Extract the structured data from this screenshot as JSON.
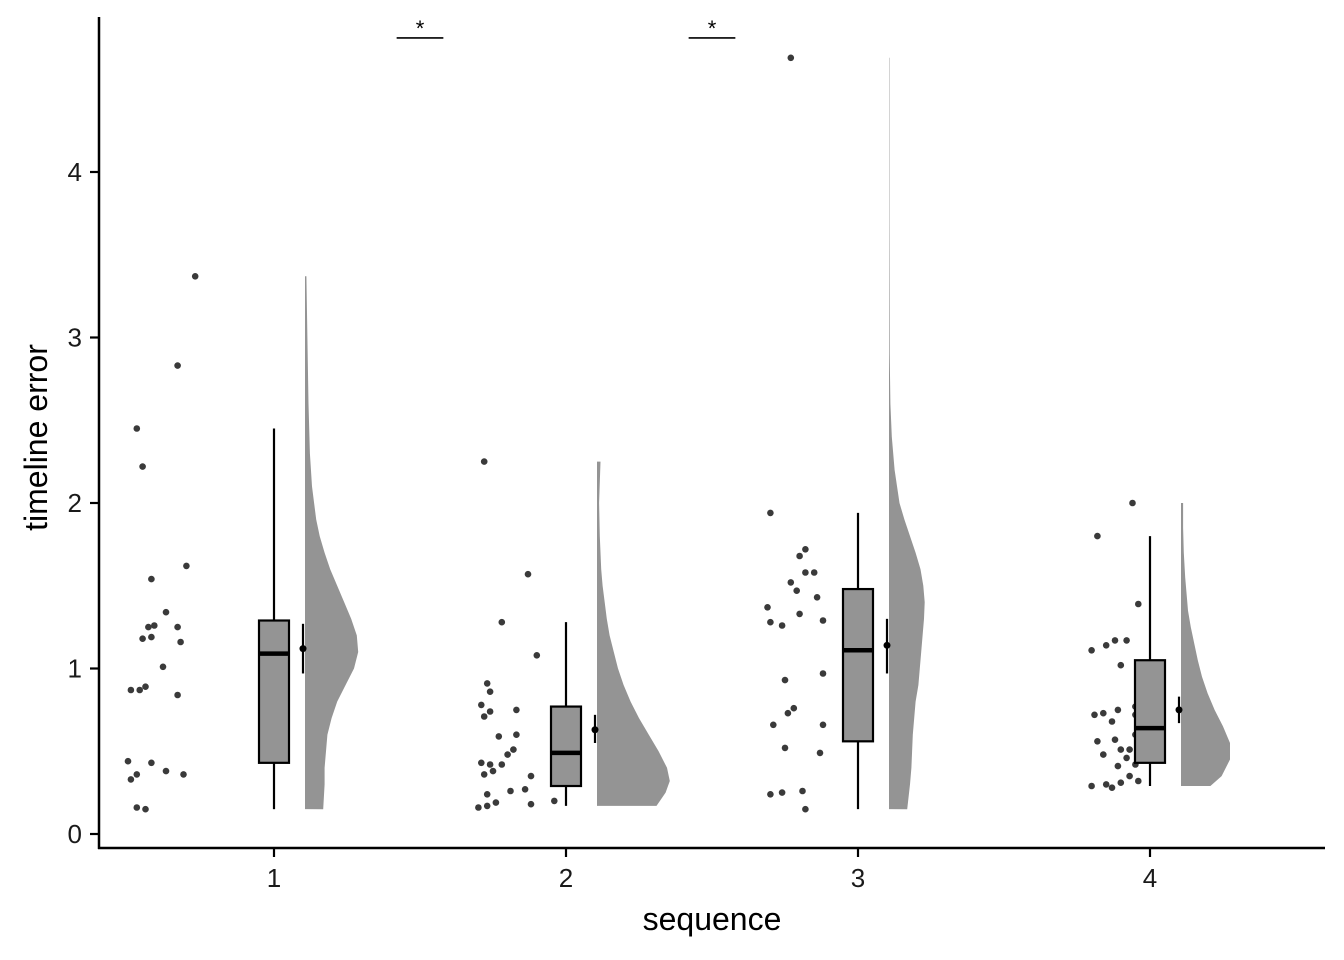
{
  "chart_data": {
    "type": "raincloud",
    "title": "",
    "xlabel": "sequence",
    "ylabel": "timeline error",
    "categories": [
      "1",
      "2",
      "3",
      "4"
    ],
    "ylim": [
      -0.08,
      4.95
    ],
    "yticks": [
      0,
      1,
      2,
      3,
      4
    ],
    "grid": false,
    "legend": "none",
    "colors": {
      "fill": "#949494",
      "point": "#3a3a3a",
      "line": "#000000"
    },
    "groups": [
      {
        "label": "1",
        "box": {
          "min": 0.15,
          "q1": 0.43,
          "median": 1.09,
          "q3": 1.29,
          "max": 2.45
        },
        "mean": 1.12,
        "mean_ci": [
          0.97,
          1.27
        ],
        "density_range": [
          0.15,
          3.37
        ],
        "density": [
          [
            0.15,
            0.26
          ],
          [
            0.3,
            0.28
          ],
          [
            0.4,
            0.28
          ],
          [
            0.5,
            0.3
          ],
          [
            0.6,
            0.32
          ],
          [
            0.7,
            0.38
          ],
          [
            0.8,
            0.46
          ],
          [
            0.9,
            0.58
          ],
          [
            1.0,
            0.7
          ],
          [
            1.1,
            0.76
          ],
          [
            1.2,
            0.74
          ],
          [
            1.3,
            0.66
          ],
          [
            1.4,
            0.56
          ],
          [
            1.5,
            0.46
          ],
          [
            1.6,
            0.36
          ],
          [
            1.7,
            0.28
          ],
          [
            1.8,
            0.21
          ],
          [
            1.9,
            0.16
          ],
          [
            2.0,
            0.13
          ],
          [
            2.1,
            0.1
          ],
          [
            2.3,
            0.07
          ],
          [
            2.6,
            0.05
          ],
          [
            3.0,
            0.035
          ],
          [
            3.37,
            0.02
          ]
        ],
        "points": [
          [
            -0.47,
            0.16
          ],
          [
            -0.44,
            0.15
          ],
          [
            -0.49,
            0.33
          ],
          [
            -0.47,
            0.36
          ],
          [
            -0.42,
            0.43
          ],
          [
            -0.37,
            0.38
          ],
          [
            -0.31,
            0.36
          ],
          [
            -0.5,
            0.44
          ],
          [
            -0.49,
            0.87
          ],
          [
            -0.46,
            0.87
          ],
          [
            -0.44,
            0.89
          ],
          [
            -0.33,
            0.84
          ],
          [
            -0.38,
            1.01
          ],
          [
            -0.45,
            1.18
          ],
          [
            -0.42,
            1.19
          ],
          [
            -0.43,
            1.25
          ],
          [
            -0.41,
            1.26
          ],
          [
            -0.32,
            1.16
          ],
          [
            -0.33,
            1.25
          ],
          [
            -0.37,
            1.34
          ],
          [
            -0.42,
            1.54
          ],
          [
            -0.3,
            1.62
          ],
          [
            -0.45,
            2.22
          ],
          [
            -0.47,
            2.45
          ],
          [
            -0.33,
            2.83
          ],
          [
            -0.27,
            3.37
          ]
        ]
      },
      {
        "label": "2",
        "box": {
          "min": 0.17,
          "q1": 0.29,
          "median": 0.49,
          "q3": 0.77,
          "max": 1.28
        },
        "mean": 0.63,
        "mean_ci": [
          0.55,
          0.72
        ],
        "density_range": [
          0.17,
          2.25
        ],
        "density": [
          [
            0.17,
            0.85
          ],
          [
            0.25,
            0.98
          ],
          [
            0.32,
            1.04
          ],
          [
            0.4,
            1.0
          ],
          [
            0.5,
            0.88
          ],
          [
            0.6,
            0.74
          ],
          [
            0.7,
            0.6
          ],
          [
            0.8,
            0.48
          ],
          [
            0.9,
            0.38
          ],
          [
            1.0,
            0.3
          ],
          [
            1.1,
            0.24
          ],
          [
            1.2,
            0.18
          ],
          [
            1.3,
            0.14
          ],
          [
            1.4,
            0.11
          ],
          [
            1.5,
            0.08
          ],
          [
            1.6,
            0.06
          ],
          [
            1.8,
            0.04
          ],
          [
            2.0,
            0.03
          ],
          [
            2.25,
            0.05
          ]
        ],
        "points": [
          [
            -0.3,
            0.16
          ],
          [
            -0.27,
            0.17
          ],
          [
            -0.24,
            0.19
          ],
          [
            -0.12,
            0.18
          ],
          [
            -0.04,
            0.2
          ],
          [
            -0.27,
            0.24
          ],
          [
            -0.19,
            0.26
          ],
          [
            -0.14,
            0.27
          ],
          [
            -0.28,
            0.36
          ],
          [
            -0.12,
            0.35
          ],
          [
            -0.25,
            0.38
          ],
          [
            -0.29,
            0.43
          ],
          [
            -0.26,
            0.42
          ],
          [
            -0.22,
            0.42
          ],
          [
            -0.2,
            0.48
          ],
          [
            -0.18,
            0.51
          ],
          [
            -0.23,
            0.59
          ],
          [
            -0.17,
            0.6
          ],
          [
            -0.28,
            0.71
          ],
          [
            -0.26,
            0.74
          ],
          [
            -0.17,
            0.75
          ],
          [
            -0.29,
            0.78
          ],
          [
            -0.26,
            0.86
          ],
          [
            -0.27,
            0.91
          ],
          [
            -0.22,
            1.28
          ],
          [
            -0.1,
            1.08
          ],
          [
            -0.13,
            1.57
          ],
          [
            -0.28,
            2.25
          ]
        ]
      },
      {
        "label": "3",
        "box": {
          "min": 0.15,
          "q1": 0.56,
          "median": 1.11,
          "q3": 1.48,
          "max": 1.94
        },
        "mean": 1.14,
        "mean_ci": [
          0.97,
          1.3
        ],
        "density_range": [
          0.15,
          4.69
        ],
        "density": [
          [
            0.15,
            0.26
          ],
          [
            0.3,
            0.3
          ],
          [
            0.4,
            0.32
          ],
          [
            0.5,
            0.33
          ],
          [
            0.6,
            0.34
          ],
          [
            0.7,
            0.36
          ],
          [
            0.8,
            0.38
          ],
          [
            0.9,
            0.42
          ],
          [
            1.0,
            0.44
          ],
          [
            1.1,
            0.46
          ],
          [
            1.2,
            0.48
          ],
          [
            1.3,
            0.5
          ],
          [
            1.4,
            0.51
          ],
          [
            1.5,
            0.49
          ],
          [
            1.6,
            0.45
          ],
          [
            1.7,
            0.38
          ],
          [
            1.8,
            0.3
          ],
          [
            1.9,
            0.22
          ],
          [
            2.0,
            0.15
          ],
          [
            2.2,
            0.08
          ],
          [
            2.4,
            0.04
          ],
          [
            2.6,
            0.02
          ],
          [
            2.9,
            0.01
          ],
          [
            3.2,
            0.008
          ],
          [
            3.7,
            0.005
          ],
          [
            4.2,
            0.005
          ],
          [
            4.69,
            0.005
          ]
        ],
        "points": [
          [
            -0.3,
            0.24
          ],
          [
            -0.19,
            0.26
          ],
          [
            -0.26,
            0.25
          ],
          [
            -0.18,
            0.15
          ],
          [
            -0.12,
            0.66
          ],
          [
            -0.29,
            0.66
          ],
          [
            -0.24,
            0.73
          ],
          [
            -0.22,
            0.76
          ],
          [
            -0.25,
            0.52
          ],
          [
            -0.13,
            0.49
          ],
          [
            -0.25,
            0.93
          ],
          [
            -0.12,
            0.97
          ],
          [
            -0.3,
            1.28
          ],
          [
            -0.26,
            1.26
          ],
          [
            -0.12,
            1.29
          ],
          [
            -0.31,
            1.37
          ],
          [
            -0.2,
            1.33
          ],
          [
            -0.21,
            1.47
          ],
          [
            -0.23,
            1.52
          ],
          [
            -0.14,
            1.43
          ],
          [
            -0.18,
            1.58
          ],
          [
            -0.15,
            1.58
          ],
          [
            -0.2,
            1.68
          ],
          [
            -0.18,
            1.72
          ],
          [
            -0.3,
            1.94
          ],
          [
            -0.23,
            4.69
          ]
        ]
      },
      {
        "label": "4",
        "box": {
          "min": 0.29,
          "q1": 0.43,
          "median": 0.64,
          "q3": 1.05,
          "max": 1.8
        },
        "mean": 0.75,
        "mean_ci": [
          0.67,
          0.83
        ],
        "density_range": [
          0.29,
          2.0
        ],
        "density": [
          [
            0.29,
            0.42
          ],
          [
            0.35,
            0.58
          ],
          [
            0.45,
            0.7
          ],
          [
            0.55,
            0.7
          ],
          [
            0.65,
            0.6
          ],
          [
            0.75,
            0.48
          ],
          [
            0.85,
            0.38
          ],
          [
            0.95,
            0.3
          ],
          [
            1.05,
            0.24
          ],
          [
            1.15,
            0.19
          ],
          [
            1.25,
            0.14
          ],
          [
            1.35,
            0.1
          ],
          [
            1.45,
            0.08
          ],
          [
            1.55,
            0.06
          ],
          [
            1.7,
            0.04
          ],
          [
            1.85,
            0.03
          ],
          [
            2.0,
            0.03
          ]
        ],
        "points": [
          [
            -0.2,
            0.29
          ],
          [
            -0.15,
            0.3
          ],
          [
            -0.13,
            0.28
          ],
          [
            -0.1,
            0.31
          ],
          [
            -0.07,
            0.35
          ],
          [
            -0.04,
            0.32
          ],
          [
            -0.11,
            0.41
          ],
          [
            -0.08,
            0.46
          ],
          [
            -0.16,
            0.48
          ],
          [
            -0.1,
            0.51
          ],
          [
            -0.07,
            0.51
          ],
          [
            -0.05,
            0.42
          ],
          [
            -0.18,
            0.56
          ],
          [
            -0.12,
            0.57
          ],
          [
            -0.05,
            0.6
          ],
          [
            -0.19,
            0.72
          ],
          [
            -0.16,
            0.73
          ],
          [
            -0.11,
            0.75
          ],
          [
            -0.05,
            0.72
          ],
          [
            -0.13,
            0.68
          ],
          [
            -0.05,
            0.77
          ],
          [
            -0.1,
            1.02
          ],
          [
            -0.2,
            1.11
          ],
          [
            -0.15,
            1.14
          ],
          [
            -0.12,
            1.17
          ],
          [
            -0.08,
            1.17
          ],
          [
            -0.04,
            1.39
          ],
          [
            -0.06,
            2.0
          ],
          [
            -0.18,
            1.8
          ]
        ]
      }
    ],
    "annotations": [
      {
        "from": 1.42,
        "to": 1.58,
        "y": 4.81,
        "label": "*"
      },
      {
        "from": 2.42,
        "to": 2.58,
        "y": 4.81,
        "label": "*"
      }
    ]
  }
}
